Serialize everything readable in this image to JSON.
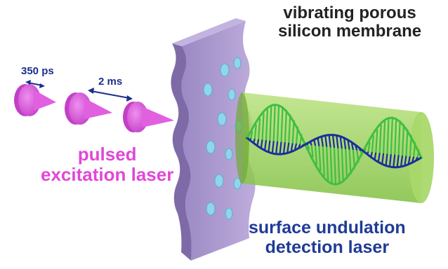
{
  "labels": {
    "membrane_line1": "vibrating porous",
    "membrane_line2": "silicon membrane",
    "excitation_line1": "pulsed",
    "excitation_line2": "excitation laser",
    "detection_line1": "surface undulation",
    "detection_line2": "detection laser",
    "pulse_width": "350 ps",
    "pulse_spacing": "2 ms"
  },
  "colors": {
    "membrane": "#a78fc9",
    "pulse": "#e060e0",
    "beam": "#8fcf4f",
    "wave_green": "#3fbf3f",
    "wave_blue": "#1a2f9a",
    "dimension_arrow": "#1c2f8c",
    "pore": "#8fd6ea"
  }
}
